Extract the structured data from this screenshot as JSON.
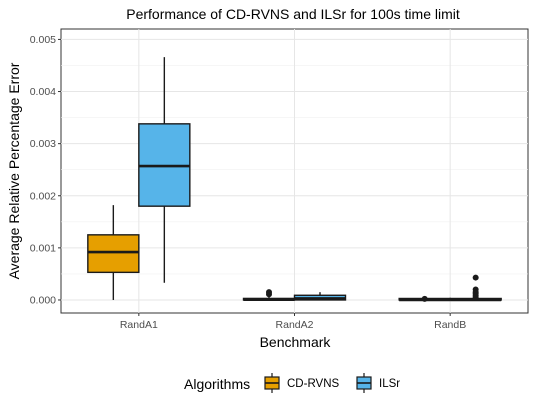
{
  "chart_data": {
    "type": "boxplot",
    "title": "Performance of CD-RVNS and ILSr for 100s time limit",
    "xlabel": "Benchmark",
    "ylabel": "Average Relative Percentage Error",
    "ylim": [
      -0.00025,
      0.0052
    ],
    "yticks": [
      0,
      0.001,
      0.002,
      0.003,
      0.004,
      0.005
    ],
    "ytick_labels": [
      "0.000",
      "0.001",
      "0.002",
      "0.003",
      "0.004",
      "0.005"
    ],
    "categories": [
      "RandA1",
      "RandA2",
      "RandB"
    ],
    "grid": true,
    "legend_position": "bottom",
    "legend_title": "Algorithms",
    "series": [
      {
        "name": "CD-RVNS",
        "color": "#E69F00",
        "boxes": [
          {
            "category": "RandA1",
            "min": 0.0,
            "q1": 0.00053,
            "median": 0.00092,
            "q3": 0.00125,
            "max": 0.00182,
            "outliers": []
          },
          {
            "category": "RandA2",
            "min": 0.0,
            "q1": 0.0,
            "median": 5e-06,
            "q3": 3e-05,
            "max": 7e-05,
            "outliers": [
              0.00011,
              0.00015
            ]
          },
          {
            "category": "RandB",
            "min": 0.0,
            "q1": 0.0,
            "median": 0.0,
            "q3": 5e-06,
            "max": 1e-05,
            "outliers": [
              2e-05
            ]
          }
        ]
      },
      {
        "name": "ILSr",
        "color": "#56B4E9",
        "boxes": [
          {
            "category": "RandA1",
            "min": 0.00033,
            "q1": 0.0018,
            "median": 0.00257,
            "q3": 0.00338,
            "max": 0.00466,
            "outliers": []
          },
          {
            "category": "RandA2",
            "min": 0.0,
            "q1": 0.0,
            "median": 3e-05,
            "q3": 9e-05,
            "max": 0.00015,
            "outliers": []
          },
          {
            "category": "RandB",
            "min": 0.0,
            "q1": 0.0,
            "median": 0.0,
            "q3": 1e-05,
            "max": 3e-05,
            "outliers": [
              5e-05,
              8e-05,
              0.00012,
              0.00015,
              0.0002,
              0.00043
            ]
          }
        ]
      }
    ]
  }
}
